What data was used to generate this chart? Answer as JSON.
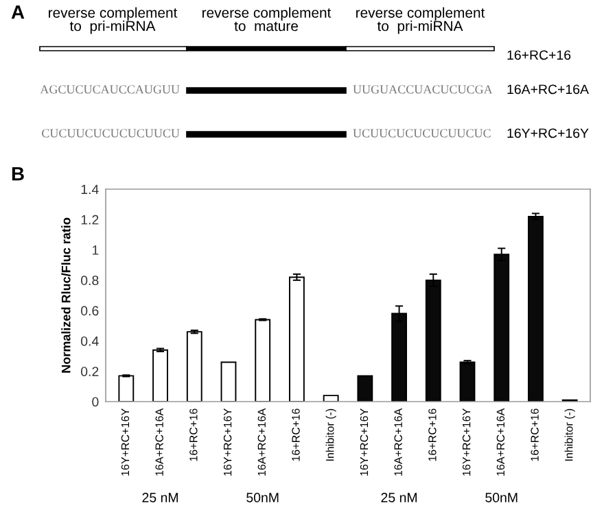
{
  "chart_data": [
    {
      "type": "other",
      "title": "A",
      "annotations": [
        "reverse complement\nto  pri-miRNA",
        "reverse complement\nto  mature",
        "reverse complement\nto  pri-miRNA",
        "16+RC+16",
        "AGCUCUCAUCCAUGUU",
        "UUGUACCUACUCUCGA",
        "16A+RC+16A",
        "CUCUUCUCUCUCUUCU",
        "UCUUCUCUCUCUUCUC",
        "16Y+RC+16Y"
      ]
    },
    {
      "type": "bar",
      "title": "B",
      "ylabel": "Normalized Rluc/Fluc ratio",
      "categories": [
        "16Y+RC+16Y",
        "16A+RC+16A",
        "16+RC+16",
        "16Y+RC+16Y",
        "16A+RC+16A",
        "16+RC+16",
        "Inhibitor (-)",
        "16Y+RC+16Y",
        "16A+RC+16A",
        "16+RC+16",
        "16Y+RC+16Y",
        "16A+RC+16A",
        "16+RC+16",
        "Inhibitor (-)"
      ],
      "values": [
        0.17,
        0.34,
        0.46,
        0.26,
        0.54,
        0.82,
        0.04,
        0.17,
        0.58,
        0.8,
        0.26,
        0.97,
        1.22,
        0.01
      ],
      "errors": [
        0.005,
        0.01,
        0.01,
        null,
        0.005,
        0.02,
        null,
        null,
        0.05,
        0.04,
        0.01,
        0.04,
        0.02,
        null
      ],
      "colors": [
        "#ffffff",
        "#ffffff",
        "#ffffff",
        "#ffffff",
        "#ffffff",
        "#ffffff",
        "#ffffff",
        "#0a0a0a",
        "#0a0a0a",
        "#0a0a0a",
        "#0a0a0a",
        "#0a0a0a",
        "#0a0a0a",
        "#0a0a0a"
      ],
      "ylim": [
        0,
        1.4
      ],
      "yticks": [
        0,
        0.2,
        0.4,
        0.6,
        0.8,
        1,
        1.2,
        1.4
      ],
      "grid": false,
      "annotations": [
        "25 nM",
        "50nM",
        "25 nM",
        "50nM"
      ]
    }
  ]
}
